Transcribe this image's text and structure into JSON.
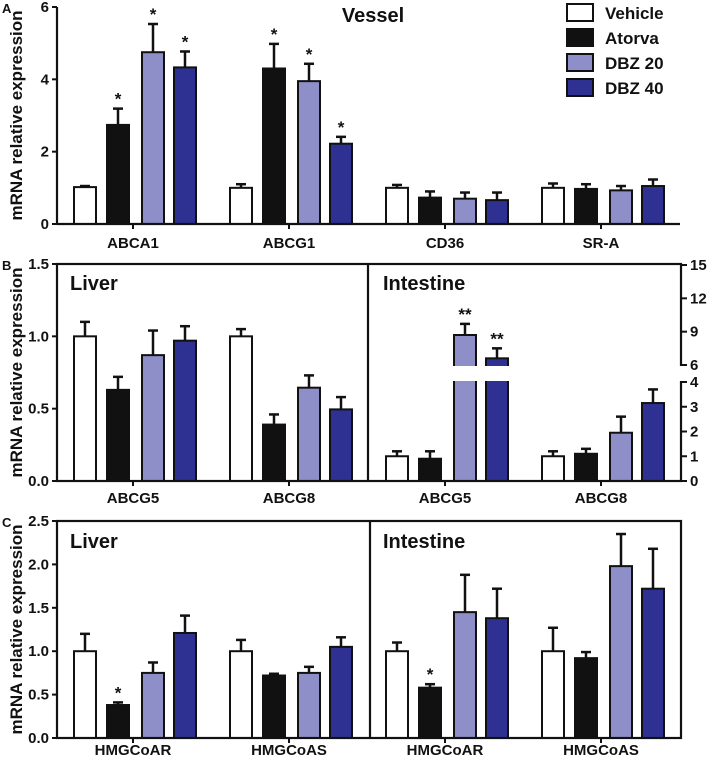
{
  "legend": {
    "placement": "top-right",
    "entries": [
      {
        "name": "Vehicle",
        "color": "#ffffff"
      },
      {
        "name": "Atorva",
        "color": "#111111"
      },
      {
        "name": "DBZ 20",
        "color": "#8e8fc8"
      },
      {
        "name": "DBZ 40",
        "color": "#2e3192"
      }
    ]
  },
  "chart_data": [
    {
      "type": "bar",
      "panel_letter": "A",
      "title": "Vessel",
      "ylabel": "mRNA relative expression",
      "ylim": [
        0,
        6
      ],
      "yticks": [
        "0",
        "2",
        "4",
        "6"
      ],
      "categories": [
        "ABCA1",
        "ABCG1",
        "CD36",
        "SR-A"
      ],
      "series": [
        {
          "name": "Vehicle",
          "values": [
            1.02,
            1.0,
            1.0,
            1.0
          ],
          "error_upper": [
            1.05,
            1.1,
            1.08,
            1.12
          ],
          "significance": [
            "",
            "",
            "",
            ""
          ]
        },
        {
          "name": "Atorva",
          "values": [
            2.74,
            4.3,
            0.73,
            0.97
          ],
          "error_upper": [
            3.19,
            4.98,
            0.9,
            1.1
          ],
          "significance": [
            "*",
            "*",
            "",
            ""
          ]
        },
        {
          "name": "DBZ 20",
          "values": [
            4.75,
            3.95,
            0.7,
            0.93
          ],
          "error_upper": [
            5.53,
            4.43,
            0.87,
            1.05
          ],
          "significance": [
            "*",
            "*",
            "",
            ""
          ]
        },
        {
          "name": "DBZ 40",
          "values": [
            4.33,
            2.22,
            0.66,
            1.05
          ],
          "error_upper": [
            4.77,
            2.41,
            0.87,
            1.23
          ],
          "significance": [
            "*",
            "*",
            "",
            ""
          ]
        }
      ]
    },
    {
      "type": "bar",
      "panel_letter": "B",
      "title": "Liver",
      "ylabel": "mRNA relative expression",
      "ylim": [
        0,
        1.5
      ],
      "yticks": [
        "0.0",
        "0.5",
        "1.0",
        "1.5"
      ],
      "categories": [
        "ABCG5",
        "ABCG8"
      ],
      "series": [
        {
          "name": "Vehicle",
          "values": [
            1.0,
            1.0
          ],
          "error_upper": [
            1.1,
            1.05
          ],
          "significance": [
            "",
            ""
          ]
        },
        {
          "name": "Atorva",
          "values": [
            0.63,
            0.39
          ],
          "error_upper": [
            0.72,
            0.46
          ],
          "significance": [
            "",
            ""
          ]
        },
        {
          "name": "DBZ 20",
          "values": [
            0.87,
            0.645
          ],
          "error_upper": [
            1.04,
            0.73
          ],
          "significance": [
            "",
            ""
          ]
        },
        {
          "name": "DBZ 40",
          "values": [
            0.97,
            0.495
          ],
          "error_upper": [
            1.07,
            0.58
          ],
          "significance": [
            "",
            ""
          ]
        }
      ]
    },
    {
      "type": "bar",
      "title": "Intestine",
      "ylim": [
        0,
        15
      ],
      "axis_break": [
        4,
        6
      ],
      "y_axis_side": "right",
      "yticks": [
        "0",
        "1",
        "2",
        "3",
        "4",
        "6",
        "9",
        "12",
        "15"
      ],
      "categories": [
        "ABCG5",
        "ABCG8"
      ],
      "series": [
        {
          "name": "Vehicle",
          "values": [
            1.0,
            1.0
          ],
          "error_upper": [
            1.2,
            1.2
          ],
          "significance": [
            "",
            ""
          ]
        },
        {
          "name": "Atorva",
          "values": [
            0.9,
            1.1
          ],
          "error_upper": [
            1.2,
            1.3
          ],
          "significance": [
            "",
            ""
          ]
        },
        {
          "name": "DBZ 20",
          "values": [
            8.7,
            1.95
          ],
          "error_upper": [
            9.7,
            2.6
          ],
          "significance": [
            "**",
            ""
          ]
        },
        {
          "name": "DBZ 40",
          "values": [
            6.6,
            3.15
          ],
          "error_upper": [
            7.5,
            3.7
          ],
          "significance": [
            "**",
            "*"
          ]
        }
      ]
    },
    {
      "type": "bar",
      "panel_letter": "C",
      "title": "Liver",
      "ylabel": "mRNA relative expression",
      "ylim": [
        0,
        2.5
      ],
      "yticks": [
        "0.0",
        "0.5",
        "1.0",
        "1.5",
        "2.0",
        "2.5"
      ],
      "categories": [
        "HMGCoAR",
        "HMGCoAS"
      ],
      "series": [
        {
          "name": "Vehicle",
          "values": [
            1.0,
            1.0
          ],
          "error_upper": [
            1.2,
            1.13
          ],
          "significance": [
            "",
            ""
          ]
        },
        {
          "name": "Atorva",
          "values": [
            0.38,
            0.72
          ],
          "error_upper": [
            0.41,
            0.74
          ],
          "significance": [
            "*",
            ""
          ]
        },
        {
          "name": "DBZ 20",
          "values": [
            0.75,
            0.75
          ],
          "error_upper": [
            0.87,
            0.82
          ],
          "significance": [
            "",
            ""
          ]
        },
        {
          "name": "DBZ 40",
          "values": [
            1.21,
            1.05
          ],
          "error_upper": [
            1.41,
            1.16
          ],
          "significance": [
            "",
            ""
          ]
        }
      ]
    },
    {
      "type": "bar",
      "title": "Intestine",
      "ylim": [
        0,
        2.5
      ],
      "categories": [
        "HMGCoAR",
        "HMGCoAS"
      ],
      "series": [
        {
          "name": "Vehicle",
          "values": [
            1.0,
            1.0
          ],
          "error_upper": [
            1.1,
            1.27
          ],
          "significance": [
            "",
            ""
          ]
        },
        {
          "name": "Atorva",
          "values": [
            0.58,
            0.92
          ],
          "error_upper": [
            0.62,
            0.99
          ],
          "significance": [
            "*",
            ""
          ]
        },
        {
          "name": "DBZ 20",
          "values": [
            1.45,
            1.98
          ],
          "error_upper": [
            1.88,
            2.35
          ],
          "significance": [
            "",
            ""
          ]
        },
        {
          "name": "DBZ 40",
          "values": [
            1.38,
            1.72
          ],
          "error_upper": [
            1.72,
            2.18
          ],
          "significance": [
            "",
            ""
          ]
        }
      ]
    }
  ]
}
